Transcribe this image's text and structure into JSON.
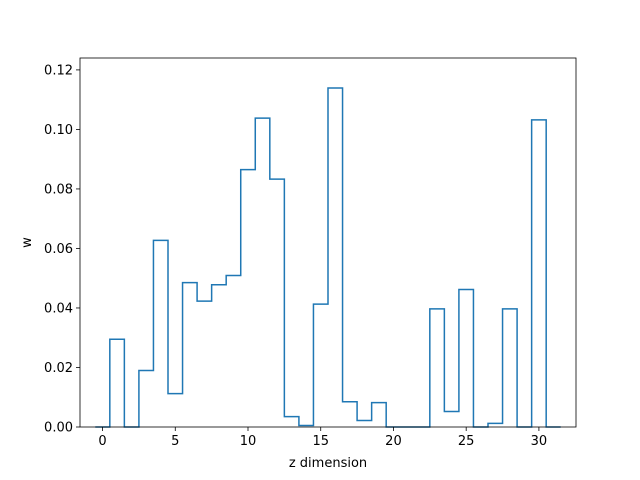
{
  "chart_data": {
    "type": "line",
    "style": "step-histogram",
    "xlabel": "z dimension",
    "ylabel": "w",
    "xlim": [
      -1.55,
      32.55
    ],
    "ylim": [
      0,
      0.124
    ],
    "grid": false,
    "x_ticks": [
      0,
      5,
      10,
      15,
      20,
      25,
      30
    ],
    "y_ticks": [
      0.0,
      0.02,
      0.04,
      0.06,
      0.08,
      0.1,
      0.12
    ],
    "y_tick_labels": [
      "0.00",
      "0.02",
      "0.04",
      "0.06",
      "0.08",
      "0.10",
      "0.12"
    ],
    "series": [
      {
        "color": "#1f77b4",
        "bin_edges": [
          -0.5,
          0.5,
          1.5,
          2.5,
          3.5,
          4.5,
          5.5,
          6.5,
          7.5,
          8.5,
          9.5,
          10.5,
          11.5,
          12.5,
          13.5,
          14.5,
          15.5,
          16.5,
          17.5,
          18.5,
          19.5,
          20.5,
          21.5,
          22.5,
          23.5,
          24.5,
          25.5,
          26.5,
          27.5,
          28.5,
          29.5,
          30.5,
          31.5
        ],
        "values": [
          0.0,
          0.0295,
          0.0,
          0.019,
          0.0627,
          0.0112,
          0.0485,
          0.0423,
          0.0478,
          0.0509,
          0.0865,
          0.1038,
          0.0833,
          0.0035,
          0.0005,
          0.0413,
          0.1139,
          0.0085,
          0.0022,
          0.0082,
          0.0,
          0.0,
          0.0,
          0.0397,
          0.0052,
          0.0462,
          0.0,
          0.0012,
          0.0397,
          0.0,
          0.1032,
          0.0
        ]
      }
    ]
  }
}
